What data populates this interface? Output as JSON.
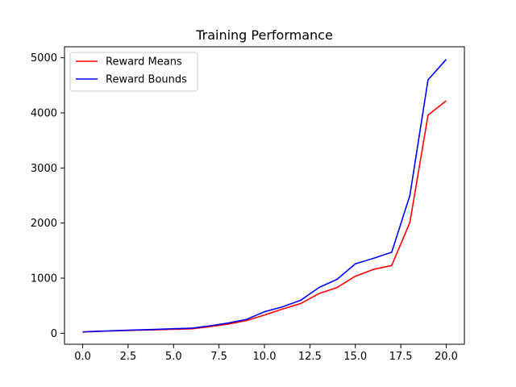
{
  "chart_data": {
    "type": "line",
    "title": "Training Performance",
    "xlabel": "",
    "ylabel": "",
    "x": [
      0,
      1,
      2,
      3,
      4,
      5,
      6,
      7,
      8,
      9,
      10,
      11,
      12,
      13,
      14,
      15,
      16,
      17,
      18,
      19,
      20
    ],
    "series": [
      {
        "name": "Reward Means",
        "color": "#ff0000",
        "values": [
          22,
          35,
          45,
          55,
          62,
          72,
          80,
          120,
          165,
          230,
          330,
          440,
          540,
          720,
          830,
          1035,
          1160,
          1230,
          2010,
          3960,
          4220
        ]
      },
      {
        "name": "Reward Bounds",
        "color": "#0000ff",
        "values": [
          25,
          38,
          50,
          60,
          70,
          82,
          92,
          135,
          185,
          250,
          390,
          480,
          600,
          830,
          980,
          1260,
          1360,
          1470,
          2500,
          4600,
          4970
        ]
      }
    ],
    "xlim": [
      -1,
      21
    ],
    "ylim": [
      -200,
      5200
    ],
    "xticks": [
      0,
      2.5,
      5,
      7.5,
      10,
      12.5,
      15,
      17.5,
      20
    ],
    "xtick_labels": [
      "0.0",
      "2.5",
      "5.0",
      "7.5",
      "10.0",
      "12.5",
      "15.0",
      "17.5",
      "20.0"
    ],
    "yticks": [
      0,
      1000,
      2000,
      3000,
      4000,
      5000
    ],
    "ytick_labels": [
      "0",
      "1000",
      "2000",
      "3000",
      "4000",
      "5000"
    ],
    "grid": false,
    "legend_position": "top-left"
  }
}
